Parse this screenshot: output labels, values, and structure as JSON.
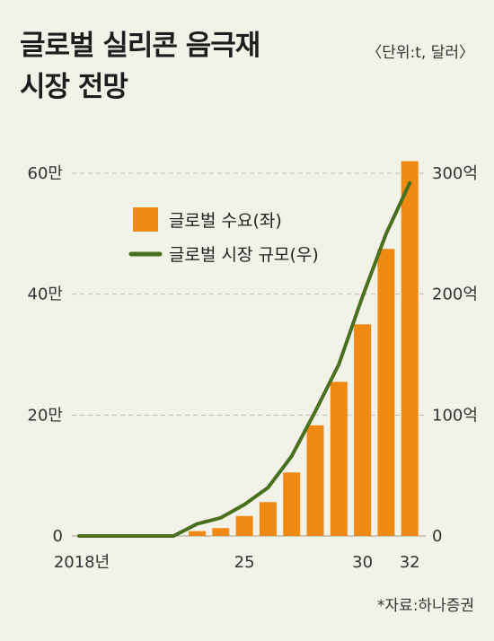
{
  "header": {
    "title_line1": "글로벌 실리콘 음극재",
    "title_line2": "시장 전망",
    "unit": "〈단위:t, 달러〉"
  },
  "footer": {
    "source": "*자료:하나증권"
  },
  "colors": {
    "bar": "#f08a12",
    "line": "#4a6f1f",
    "grid": "#bdbdb0",
    "background": "#f3f2e8"
  },
  "chart_data": {
    "type": "bar",
    "x": [
      2018,
      2019,
      2020,
      2021,
      2022,
      2023,
      2024,
      2025,
      2026,
      2027,
      2028,
      2029,
      2030,
      2031,
      2032
    ],
    "x_tick_labels": [
      {
        "x": 2018,
        "label": "2018년"
      },
      {
        "x": 2025,
        "label": "25"
      },
      {
        "x": 2030,
        "label": "30"
      },
      {
        "x": 2032,
        "label": "32"
      }
    ],
    "series": [
      {
        "name": "글로벌 수요(좌)",
        "type": "bar",
        "axis": "left",
        "values": [
          null,
          null,
          null,
          null,
          null,
          8000,
          13000,
          33000,
          56000,
          105000,
          183000,
          255000,
          350000,
          475000,
          620000
        ]
      },
      {
        "name": "글로벌 시장 규모(우)",
        "type": "line",
        "axis": "right",
        "values": [
          0,
          0,
          0,
          0,
          0,
          10,
          15,
          26,
          40,
          66,
          103,
          142,
          198,
          250,
          292
        ]
      }
    ],
    "y_left": {
      "ylim": [
        0,
        600000
      ],
      "ticks": [
        0,
        200000,
        400000,
        600000
      ],
      "tick_labels": [
        "0",
        "20만",
        "40만",
        "60만"
      ]
    },
    "y_right": {
      "ylim": [
        0,
        300
      ],
      "ticks": [
        0,
        100,
        200,
        300
      ],
      "tick_labels": [
        "0",
        "100억",
        "200억",
        "300억"
      ]
    },
    "grid": "dashed horizontal",
    "legend": "upper-left inside plot"
  }
}
